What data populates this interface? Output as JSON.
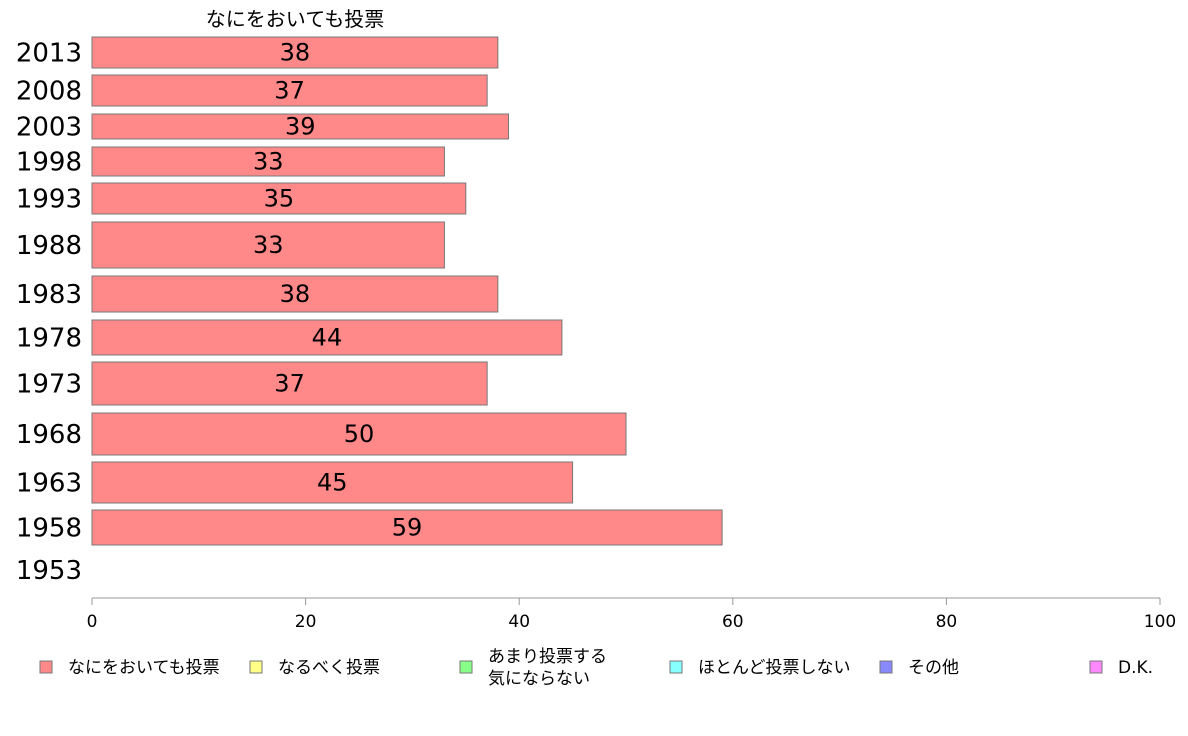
{
  "chart_data": {
    "type": "bar",
    "orientation": "horizontal",
    "stacked": true,
    "top_label": "なにをおいても投票",
    "categories": [
      "2013",
      "2008",
      "2003",
      "1998",
      "1993",
      "1988",
      "1983",
      "1978",
      "1973",
      "1968",
      "1963",
      "1958",
      "1953"
    ],
    "series": [
      {
        "name": "なにをおいても投票",
        "color": "#ff8888",
        "values": [
          38,
          37,
          39,
          33,
          35,
          33,
          38,
          44,
          37,
          50,
          45,
          59,
          null
        ]
      },
      {
        "name": "なるべく投票",
        "color": "#ffff88",
        "values": [
          null,
          null,
          null,
          null,
          null,
          null,
          null,
          null,
          null,
          null,
          null,
          null,
          null
        ]
      },
      {
        "name": [
          "あまり投票する",
          "気にならない"
        ],
        "color": "#88ff88",
        "values": [
          null,
          null,
          null,
          null,
          null,
          null,
          null,
          null,
          null,
          null,
          null,
          null,
          null
        ]
      },
      {
        "name": "ほとんど投票しない",
        "color": "#88ffff",
        "values": [
          null,
          null,
          null,
          null,
          null,
          null,
          null,
          null,
          null,
          null,
          null,
          null,
          null
        ]
      },
      {
        "name": "その他",
        "color": "#8888ff",
        "values": [
          null,
          null,
          null,
          null,
          null,
          null,
          null,
          null,
          null,
          null,
          null,
          null,
          null
        ]
      },
      {
        "name": "D.K.",
        "color": "#ff88ff",
        "values": [
          null,
          null,
          null,
          null,
          null,
          null,
          null,
          null,
          null,
          null,
          null,
          null,
          null
        ]
      }
    ],
    "xlim": [
      0,
      100
    ],
    "xticks": [
      0,
      20,
      40,
      60,
      80,
      100
    ],
    "grid": false,
    "legend_position": "bottom"
  }
}
